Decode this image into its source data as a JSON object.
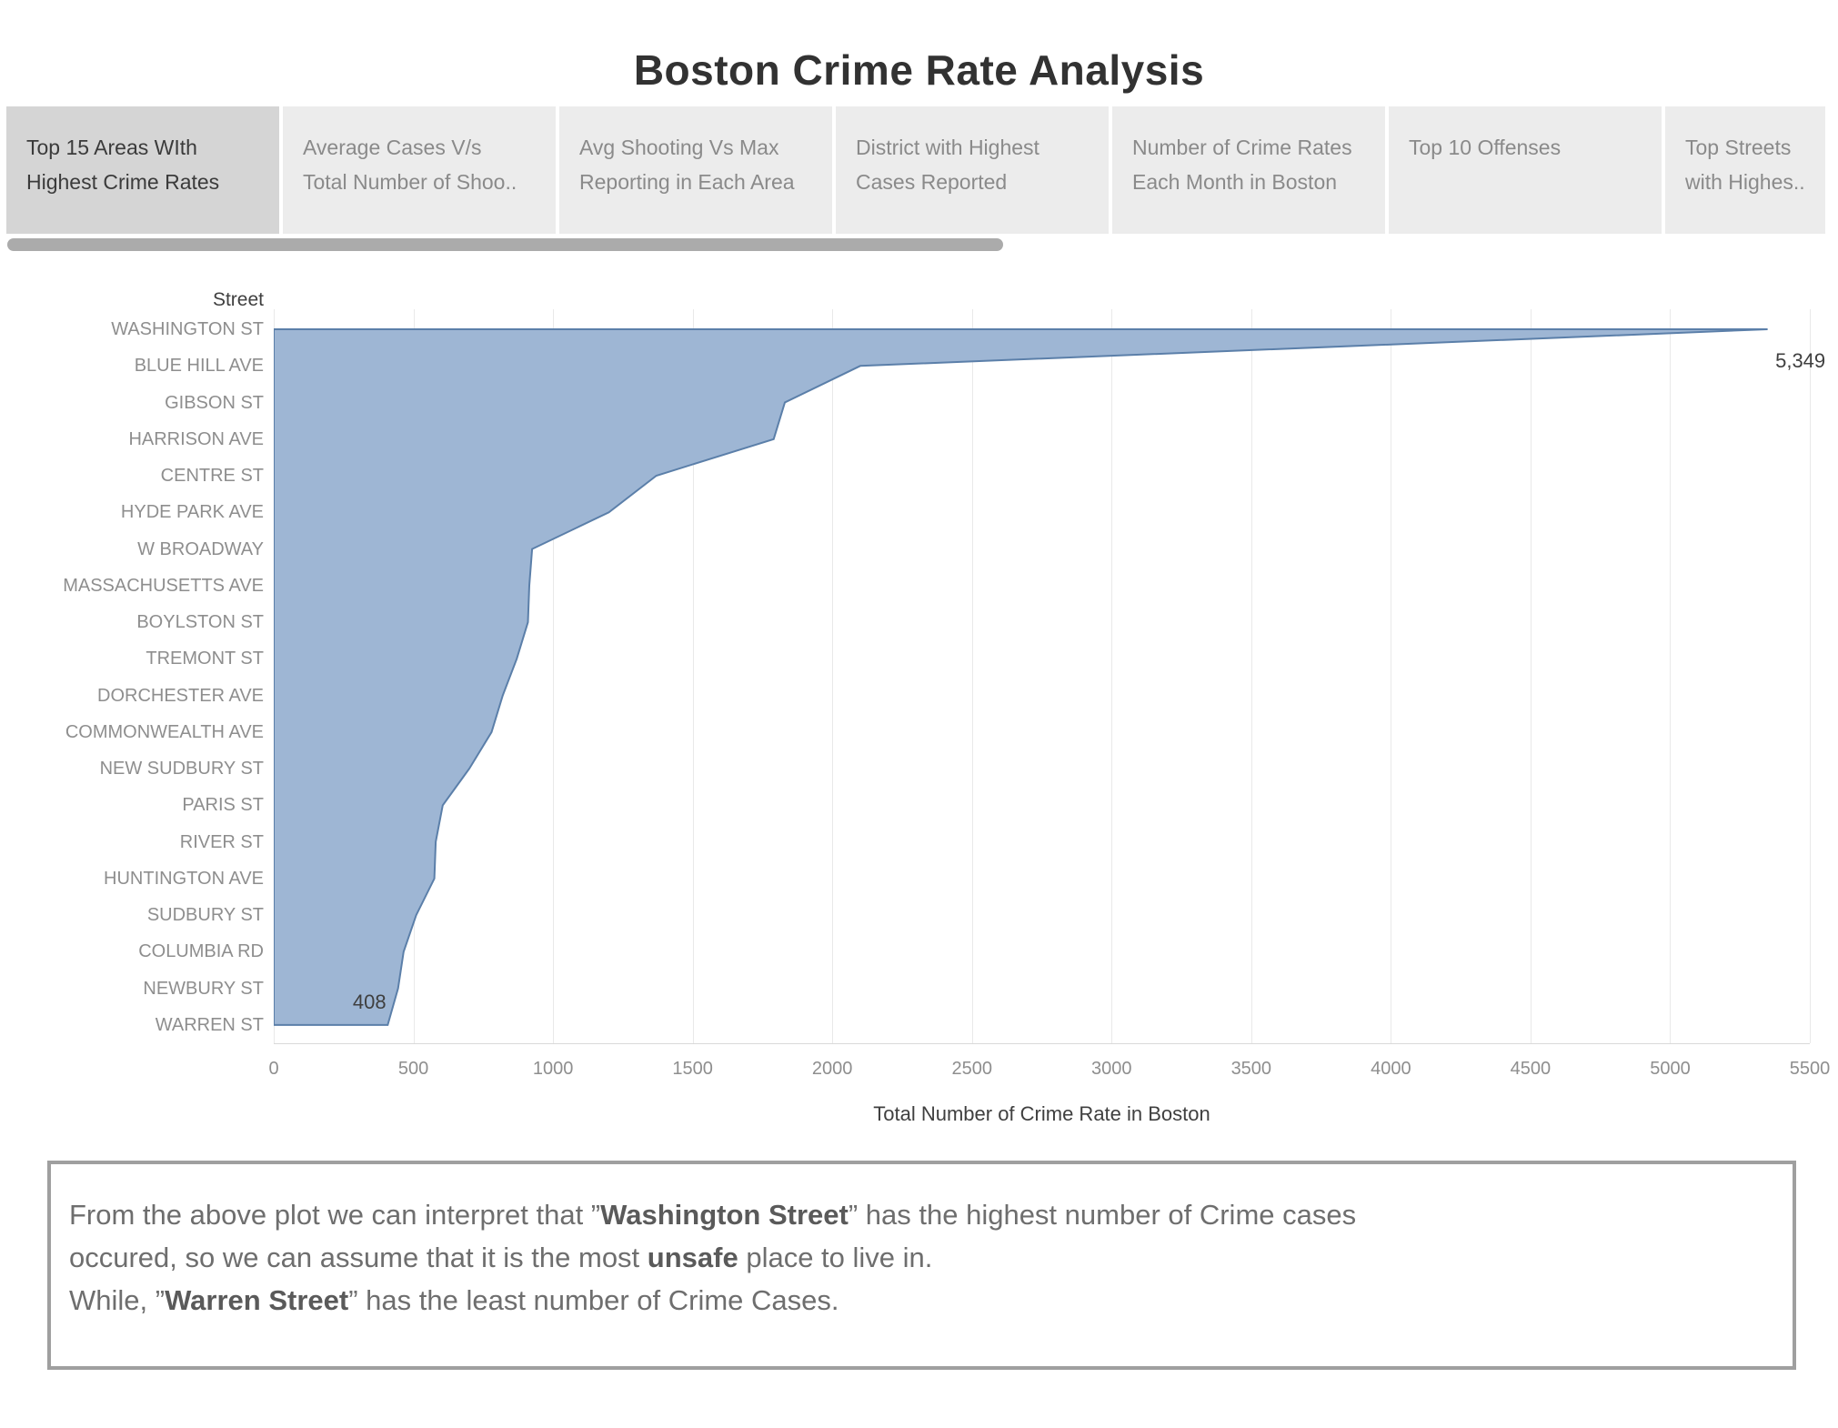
{
  "title": "Boston Crime Rate Analysis",
  "tabs": [
    {
      "id": "top-15-areas",
      "lines": [
        "Top 15 Areas WIth",
        "Highest Crime Rates"
      ],
      "active": true
    },
    {
      "id": "average-cases-vs-shootings",
      "lines": [
        "Average Cases V/s",
        "Total Number of Shoo.."
      ],
      "active": false
    },
    {
      "id": "avg-shooting-vs-max-reporting",
      "lines": [
        "Avg Shooting Vs Max",
        "Reporting in Each Area"
      ],
      "active": false
    },
    {
      "id": "district-highest-cases",
      "lines": [
        "District with Highest",
        "Cases Reported"
      ],
      "active": false
    },
    {
      "id": "crime-rates-each-month",
      "lines": [
        "Number of Crime Rates",
        "Each Month in Boston"
      ],
      "active": false
    },
    {
      "id": "top-10-offenses",
      "lines": [
        "Top 10 Offenses"
      ],
      "active": false
    },
    {
      "id": "top-streets",
      "lines": [
        "Top Streets",
        "with Highes.."
      ],
      "active": false
    }
  ],
  "chart_data": {
    "type": "area",
    "orientation": "horizontal-rows",
    "ylabel": "Street",
    "xlabel": "Total Number of Crime Rate in Boston",
    "xlim": [
      0,
      5500
    ],
    "xticks": [
      0,
      500,
      1000,
      1500,
      2000,
      2500,
      3000,
      3500,
      4000,
      4500,
      5000,
      5500
    ],
    "grid": "vertical",
    "legend": "none",
    "categories": [
      "WASHINGTON ST",
      "BLUE HILL AVE",
      "GIBSON ST",
      "HARRISON AVE",
      "CENTRE ST",
      "HYDE PARK AVE",
      "W BROADWAY",
      "MASSACHUSETTS AVE",
      "BOYLSTON ST",
      "TREMONT ST",
      "DORCHESTER AVE",
      "COMMONWEALTH AVE",
      "NEW SUDBURY ST",
      "PARIS ST",
      "RIVER ST",
      "HUNTINGTON AVE",
      "SUDBURY ST",
      "COLUMBIA RD",
      "NEWBURY ST",
      "WARREN ST"
    ],
    "values": [
      5349,
      2100,
      1830,
      1790,
      1370,
      1200,
      925,
      915,
      910,
      870,
      820,
      780,
      700,
      605,
      580,
      575,
      510,
      465,
      445,
      408
    ],
    "point_labels": [
      {
        "category": "WASHINGTON ST",
        "label": "5,349"
      },
      {
        "category": "WARREN ST",
        "label": "408"
      }
    ],
    "colors": {
      "fill": "#9eb6d4",
      "stroke": "#5b7fa9",
      "grid": "#e9e9e9",
      "tick_text": "#8e8e8e",
      "label_text": "#3f3f3f"
    }
  },
  "note": {
    "lines": [
      [
        {
          "text": "From the above plot we can interpret that ”"
        },
        {
          "text": "Washington Street",
          "bold": true
        },
        {
          "text": "” has the highest number of Crime cases"
        }
      ],
      [
        {
          "text": "occured, so we can assume that it is the most "
        },
        {
          "text": "unsafe",
          "bold": true
        },
        {
          "text": " place to live in."
        }
      ],
      [
        {
          "text": "While, ”"
        },
        {
          "text": "Warren Street",
          "bold": true
        },
        {
          "text": "” has the least number of Crime Cases."
        }
      ]
    ]
  }
}
